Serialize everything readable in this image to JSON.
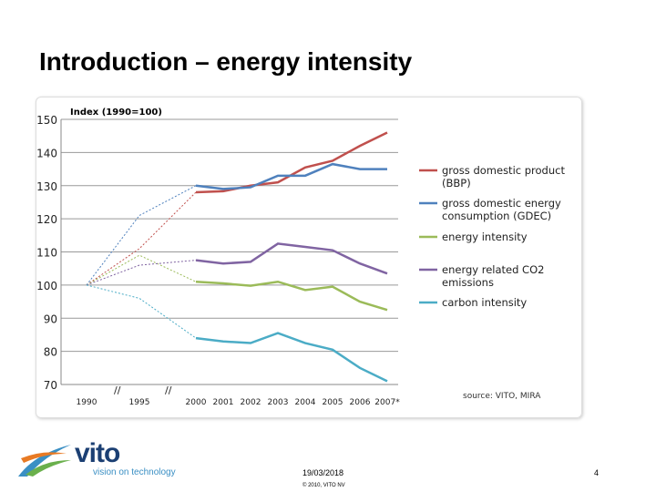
{
  "title": "Introduction – energy intensity",
  "footer": {
    "date": "19/03/2018",
    "copyright": "© 2010, VITO NV",
    "page": "4",
    "logo": "vito",
    "tagline": "vision on technology"
  },
  "chart_data": {
    "type": "line",
    "ylabel": "Index (1990=100)",
    "ylim": [
      70,
      150
    ],
    "yticks": [
      70,
      80,
      90,
      100,
      110,
      120,
      130,
      140,
      150
    ],
    "categories": [
      "1990",
      "1995",
      "2000",
      "2001",
      "2002",
      "2003",
      "2004",
      "2005",
      "2006",
      "2007*"
    ],
    "grid": true,
    "legend_placement": "right",
    "source": "source: VITO, MIRA",
    "note": "1990–2000 segments dashed",
    "series": [
      {
        "name": "gross domestic product (BBP)",
        "color": "#c0504d",
        "values": [
          100,
          111,
          128,
          128.3,
          130,
          131,
          135.5,
          137.5,
          142,
          146
        ]
      },
      {
        "name": "gross domestic energy consumption (GDEC)",
        "color": "#4f81bd",
        "values": [
          100,
          121,
          130,
          129,
          129.5,
          133,
          133,
          136.5,
          135,
          135
        ]
      },
      {
        "name": "energy intensity",
        "color": "#9bbb59",
        "values": [
          100,
          109,
          101,
          100.5,
          99.8,
          101,
          98.5,
          99.5,
          95,
          92.5
        ]
      },
      {
        "name": "energy related CO2 emissions",
        "color": "#8064a2",
        "values": [
          100,
          106,
          107.5,
          106.5,
          107,
          112.5,
          111.5,
          110.5,
          106.5,
          103.5
        ]
      },
      {
        "name": "carbon intensity",
        "color": "#4bacc6",
        "values": [
          100,
          96,
          84,
          83,
          82.5,
          85.5,
          82.5,
          80.5,
          75,
          71
        ]
      }
    ]
  }
}
